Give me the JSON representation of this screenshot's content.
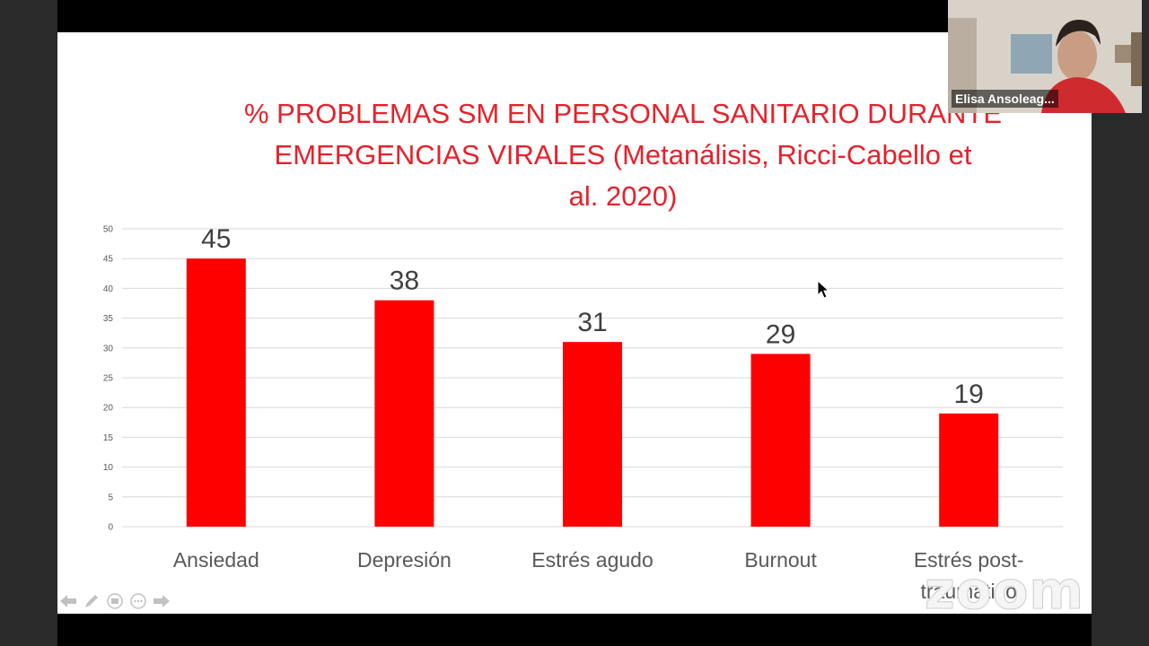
{
  "meeting": {
    "participant_name": "Elisa Ansoleag...",
    "watermark": "zoom"
  },
  "slide": {
    "title_line1": "% PROBLEMAS SM EN PERSONAL SANITARIO DURANTE",
    "title_line2": "EMERGENCIAS VIRALES (Metanálisis, Ricci-Cabello et",
    "title_line3": "al. 2020)"
  },
  "chart_data": {
    "type": "bar",
    "title": "% PROBLEMAS SM EN PERSONAL SANITARIO DURANTE EMERGENCIAS VIRALES (Metanálisis, Ricci-Cabello et al. 2020)",
    "categories": [
      "Ansiedad",
      "Depresión",
      "Estrés agudo",
      "Burnout",
      "Estrés post-traumático"
    ],
    "category_lines": [
      [
        "Ansiedad"
      ],
      [
        "Depresión"
      ],
      [
        "Estrés agudo"
      ],
      [
        "Burnout"
      ],
      [
        "Estrés post-",
        "traumático"
      ]
    ],
    "values": [
      45,
      38,
      31,
      29,
      19
    ],
    "data_labels": [
      "45",
      "38",
      "31",
      "29",
      "19"
    ],
    "yticks": [
      "0",
      "5",
      "10",
      "15",
      "20",
      "25",
      "30",
      "35",
      "40",
      "45",
      "50"
    ],
    "ylim": [
      0,
      50
    ],
    "grid": true,
    "bar_color": "#ff0000"
  },
  "colors": {
    "title": "#e8202a",
    "bar": "#ff0000",
    "slide_bg": "#ffffff"
  },
  "toolbar": {
    "icons": [
      "arrow-left-icon",
      "pen-icon",
      "slides-icon",
      "more-icon",
      "arrow-right-icon"
    ]
  }
}
